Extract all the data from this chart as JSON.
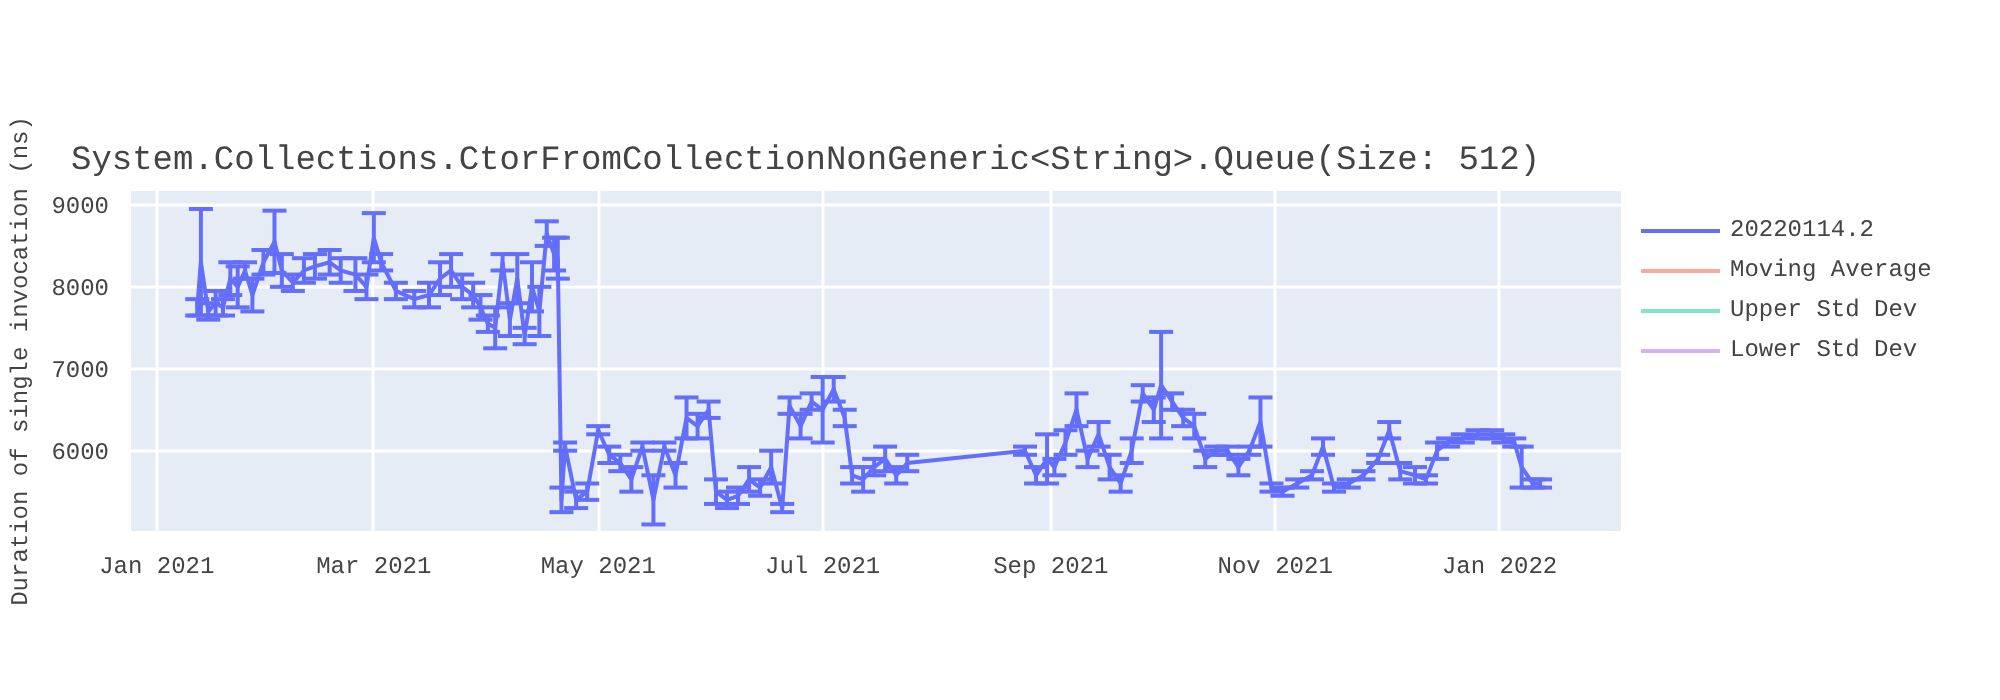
{
  "chart_data": {
    "type": "line",
    "title": "System.Collections.CtorFromCollectionNonGeneric<String>.Queue(Size: 512)",
    "ylabel": "Duration of single invocation (ns)",
    "x": [
      "2021-01-12",
      "2021-01-13",
      "2021-01-15",
      "2021-01-17",
      "2021-01-19",
      "2021-01-21",
      "2021-01-23",
      "2021-01-25",
      "2021-01-27",
      "2021-01-30",
      "2021-02-02",
      "2021-02-04",
      "2021-02-07",
      "2021-02-10",
      "2021-02-13",
      "2021-02-17",
      "2021-02-20",
      "2021-02-24",
      "2021-02-27",
      "2021-03-01",
      "2021-03-03",
      "2021-03-07",
      "2021-03-12",
      "2021-03-16",
      "2021-03-19",
      "2021-03-22",
      "2021-03-25",
      "2021-03-28",
      "2021-03-30",
      "2021-04-01",
      "2021-04-03",
      "2021-04-05",
      "2021-04-07",
      "2021-04-09",
      "2021-04-11",
      "2021-04-13",
      "2021-04-15",
      "2021-04-17",
      "2021-04-19",
      "2021-04-20",
      "2021-04-21",
      "2021-04-22",
      "2021-04-25",
      "2021-04-28",
      "2021-05-01",
      "2021-05-04",
      "2021-05-07",
      "2021-05-10",
      "2021-05-13",
      "2021-05-16",
      "2021-05-19",
      "2021-05-22",
      "2021-05-25",
      "2021-05-28",
      "2021-05-31",
      "2021-06-02",
      "2021-06-05",
      "2021-06-08",
      "2021-06-11",
      "2021-06-14",
      "2021-06-17",
      "2021-06-20",
      "2021-06-22",
      "2021-06-25",
      "2021-06-28",
      "2021-07-01",
      "2021-07-04",
      "2021-07-07",
      "2021-07-09",
      "2021-07-12",
      "2021-07-15",
      "2021-07-18",
      "2021-07-21",
      "2021-07-24",
      "2021-08-25",
      "2021-08-28",
      "2021-08-31",
      "2021-09-02",
      "2021-09-05",
      "2021-09-08",
      "2021-09-11",
      "2021-09-14",
      "2021-09-17",
      "2021-09-20",
      "2021-09-23",
      "2021-09-26",
      "2021-09-29",
      "2021-10-01",
      "2021-10-04",
      "2021-10-07",
      "2021-10-10",
      "2021-10-13",
      "2021-10-16",
      "2021-10-19",
      "2021-10-22",
      "2021-10-25",
      "2021-10-28",
      "2021-10-31",
      "2021-11-03",
      "2021-11-07",
      "2021-11-11",
      "2021-11-14",
      "2021-11-17",
      "2021-11-21",
      "2021-11-25",
      "2021-11-29",
      "2021-12-02",
      "2021-12-05",
      "2021-12-09",
      "2021-12-12",
      "2021-12-15",
      "2021-12-18",
      "2021-12-22",
      "2021-12-26",
      "2021-12-30",
      "2022-01-02",
      "2022-01-05",
      "2022-01-07",
      "2022-01-10",
      "2022-01-12"
    ],
    "series": [
      {
        "name": "20220114.2",
        "color": "#636efa",
        "values": [
          7750,
          8300,
          7700,
          7800,
          7750,
          8100,
          8000,
          8200,
          7900,
          8300,
          8550,
          8200,
          8050,
          8200,
          8250,
          8300,
          8200,
          8150,
          8000,
          8600,
          8300,
          7950,
          7850,
          7900,
          8100,
          8200,
          8000,
          7900,
          7750,
          7550,
          7500,
          8300,
          7600,
          8100,
          7400,
          8000,
          7700,
          8650,
          8400,
          8350,
          5400,
          6050,
          5400,
          5500,
          6250,
          5950,
          5850,
          5650,
          6050,
          5400,
          6050,
          5700,
          6400,
          6300,
          6500,
          5500,
          5400,
          5450,
          5650,
          5550,
          5800,
          5300,
          6550,
          6300,
          6600,
          6500,
          6750,
          6400,
          5700,
          5650,
          5800,
          5900,
          5700,
          5850,
          6000,
          5700,
          5900,
          5800,
          6100,
          6500,
          5900,
          6200,
          5800,
          5600,
          6000,
          6700,
          6500,
          6800,
          6600,
          6400,
          6300,
          5900,
          6000,
          6000,
          5800,
          6000,
          6350,
          5550,
          5500,
          5600,
          5700,
          6050,
          5550,
          5600,
          5700,
          5900,
          6250,
          5750,
          5700,
          5650,
          6000,
          6100,
          6150,
          6200,
          6200,
          6150,
          6100,
          5800,
          5600,
          5600
        ],
        "errors": [
          100,
          650,
          100,
          150,
          100,
          200,
          250,
          100,
          200,
          150,
          380,
          200,
          100,
          150,
          150,
          150,
          150,
          200,
          150,
          300,
          100,
          100,
          100,
          150,
          200,
          200,
          150,
          150,
          150,
          100,
          250,
          100,
          200,
          300,
          100,
          300,
          300,
          150,
          200,
          250,
          150,
          50,
          100,
          100,
          50,
          100,
          100,
          150,
          50,
          300,
          50,
          150,
          250,
          150,
          100,
          150,
          100,
          100,
          150,
          100,
          200,
          50,
          100,
          150,
          100,
          400,
          150,
          100,
          100,
          150,
          100,
          150,
          100,
          100,
          50,
          100,
          300,
          100,
          150,
          200,
          100,
          150,
          150,
          100,
          150,
          100,
          150,
          650,
          100,
          100,
          150,
          100,
          50,
          50,
          100,
          50,
          300,
          50,
          50,
          50,
          50,
          100,
          50,
          50,
          50,
          50,
          100,
          100,
          100,
          50,
          100,
          50,
          50,
          50,
          50,
          50,
          50,
          250,
          50,
          50
        ]
      },
      {
        "name": "Moving Average",
        "color": "#ef553b",
        "values": [
          null,
          null,
          null,
          null,
          null,
          null,
          null,
          null,
          null,
          null,
          null,
          null,
          null,
          null,
          null,
          null,
          null,
          null,
          null,
          null,
          null,
          null,
          null,
          null,
          null,
          null,
          null,
          null,
          null,
          null,
          null,
          null,
          null,
          null,
          null,
          null,
          null,
          null,
          null,
          null,
          null,
          null,
          null,
          null,
          null,
          null,
          null,
          null,
          null,
          null,
          null,
          null,
          null,
          null,
          null,
          null,
          null,
          null,
          null,
          null,
          null,
          null,
          null,
          null,
          null,
          null,
          null,
          null,
          null,
          null,
          null,
          null,
          null,
          null,
          null,
          null,
          null,
          null,
          null,
          null,
          null,
          null,
          null,
          null,
          null,
          null,
          null,
          null,
          null,
          null,
          null,
          null,
          null,
          null,
          null,
          null,
          null,
          null,
          null,
          null,
          null,
          null,
          null,
          null,
          null,
          null,
          null,
          null,
          null,
          null,
          null,
          null,
          null,
          null,
          null,
          null,
          null,
          null,
          null,
          null
        ]
      },
      {
        "name": "Upper Std Dev",
        "color": "#00cc96",
        "values": [
          null,
          null,
          null,
          null,
          null,
          null,
          null,
          null,
          null,
          null,
          null,
          null,
          null,
          null,
          null,
          null,
          null,
          null,
          null,
          null,
          null,
          null,
          null,
          null,
          null,
          null,
          null,
          null,
          null,
          null,
          null,
          null,
          null,
          null,
          null,
          null,
          null,
          null,
          null,
          null,
          null,
          null,
          null,
          null,
          null,
          null,
          null,
          null,
          null,
          null,
          null,
          null,
          null,
          null,
          null,
          null,
          null,
          null,
          null,
          null,
          null,
          null,
          null,
          null,
          null,
          null,
          null,
          null,
          null,
          null,
          null,
          null,
          null,
          null,
          null,
          null,
          null,
          null,
          null,
          null,
          null,
          null,
          null,
          null,
          null,
          null,
          null,
          null,
          null,
          null,
          null,
          null,
          null,
          null,
          null,
          null,
          null,
          null,
          null,
          null,
          null,
          null,
          null,
          null,
          null,
          null,
          null,
          null,
          null,
          null,
          null,
          null,
          null,
          null,
          null,
          null,
          null,
          null,
          null,
          null
        ]
      },
      {
        "name": "Lower Std Dev",
        "color": "#ab63fa",
        "values": [
          null,
          null,
          null,
          null,
          null,
          null,
          null,
          null,
          null,
          null,
          null,
          null,
          null,
          null,
          null,
          null,
          null,
          null,
          null,
          null,
          null,
          null,
          null,
          null,
          null,
          null,
          null,
          null,
          null,
          null,
          null,
          null,
          null,
          null,
          null,
          null,
          null,
          null,
          null,
          null,
          null,
          null,
          null,
          null,
          null,
          null,
          null,
          null,
          null,
          null,
          null,
          null,
          null,
          null,
          null,
          null,
          null,
          null,
          null,
          null,
          null,
          null,
          null,
          null,
          null,
          null,
          null,
          null,
          null,
          null,
          null,
          null,
          null,
          null,
          null,
          null,
          null,
          null,
          null,
          null,
          null,
          null,
          null,
          null,
          null,
          null,
          null,
          null,
          null,
          null,
          null,
          null,
          null,
          null,
          null,
          null,
          null,
          null,
          null,
          null,
          null,
          null,
          null,
          null,
          null,
          null,
          null,
          null,
          null,
          null,
          null,
          null,
          null,
          null,
          null,
          null,
          null,
          null,
          null,
          null
        ]
      }
    ],
    "xlim": [
      "2020-12-25",
      "2022-02-03"
    ],
    "ylim": [
      5020,
      9170
    ],
    "xticks": [
      {
        "value": "2021-01-01",
        "label": "Jan 2021"
      },
      {
        "value": "2021-03-01",
        "label": "Mar 2021"
      },
      {
        "value": "2021-05-01",
        "label": "May 2021"
      },
      {
        "value": "2021-07-01",
        "label": "Jul 2021"
      },
      {
        "value": "2021-09-01",
        "label": "Sep 2021"
      },
      {
        "value": "2021-11-01",
        "label": "Nov 2021"
      },
      {
        "value": "2022-01-01",
        "label": "Jan 2022"
      }
    ],
    "yticks": [
      6000,
      7000,
      8000,
      9000
    ],
    "grid": true,
    "legend": "right",
    "marker": "none",
    "line_style": "solid"
  }
}
